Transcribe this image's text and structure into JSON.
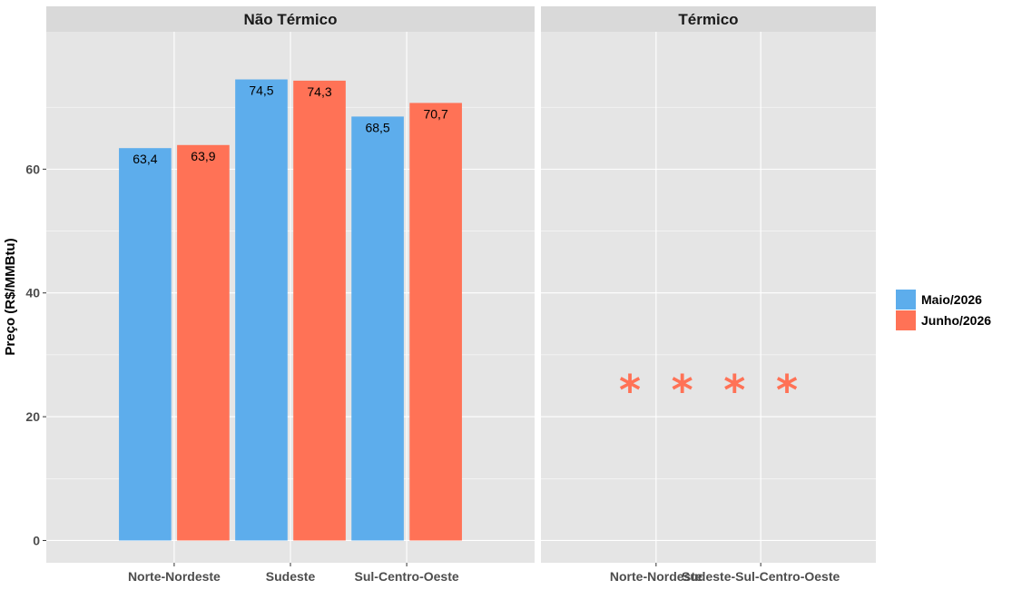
{
  "chart_data": {
    "type": "bar",
    "ylabel": "Preço (R$/MMBtu)",
    "ylim": [
      -3.6,
      82.2
    ],
    "yticks": [
      0,
      20,
      40,
      60
    ],
    "grid": true,
    "legend_position": "right",
    "series": [
      {
        "name": "Maio/2026",
        "color": "#5DADEC"
      },
      {
        "name": "Junho/2026",
        "color": "#FF7256"
      }
    ],
    "panels": [
      {
        "title": "Não Térmico",
        "categories": [
          "Norte-Nordeste",
          "Sudeste",
          "Sul-Centro-Oeste"
        ],
        "values": {
          "Maio/2026": [
            63.4,
            74.5,
            68.5
          ],
          "Junho/2026": [
            63.9,
            74.3,
            70.7
          ]
        },
        "value_labels": {
          "Maio/2026": [
            "63,4",
            "74,5",
            "68,5"
          ],
          "Junho/2026": [
            "63,9",
            "74,3",
            "70,7"
          ]
        }
      },
      {
        "title": "Térmico",
        "categories": [
          "Norte-Nordeste",
          "Sudeste-Sul-Centro-Oeste"
        ],
        "markers": [
          {
            "category": "Norte-Nordeste",
            "series": "Maio/2026",
            "symbol": "*"
          },
          {
            "category": "Norte-Nordeste",
            "series": "Junho/2026",
            "symbol": "*"
          },
          {
            "category": "Sudeste-Sul-Centro-Oeste",
            "series": "Maio/2026",
            "symbol": "*"
          },
          {
            "category": "Sudeste-Sul-Centro-Oeste",
            "series": "Junho/2026",
            "symbol": "*"
          }
        ],
        "marker_value": 26,
        "marker_color": "#FF7256"
      }
    ]
  }
}
